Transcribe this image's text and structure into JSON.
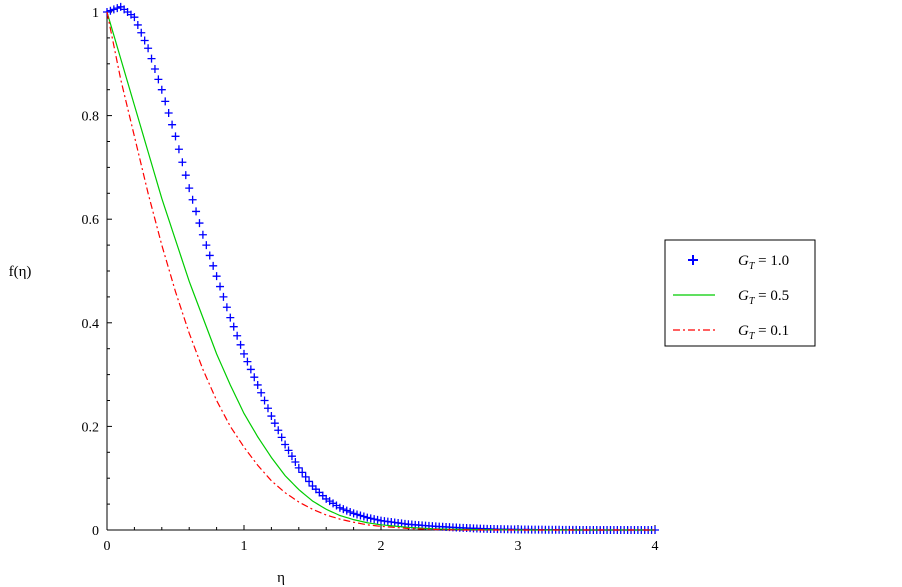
{
  "chart_data": {
    "type": "line",
    "title": "",
    "xlabel": "η",
    "ylabel": "f(η)",
    "xlim": [
      0,
      4
    ],
    "ylim": [
      0,
      1
    ],
    "x_ticks": [
      "0",
      "1",
      "2",
      "3",
      "4"
    ],
    "y_ticks": [
      "0",
      "0.2",
      "0.4",
      "0.6",
      "0.8",
      "1"
    ],
    "grid": false,
    "legend_position": "right",
    "series": [
      {
        "name": "G_T = 1.0",
        "legend_label": {
          "g": "G",
          "sub": "T",
          "rest": " = 1.0"
        },
        "color": "#0000ff",
        "marker": "plus",
        "x": [
          0,
          0.1,
          0.2,
          0.3,
          0.4,
          0.5,
          0.6,
          0.7,
          0.8,
          0.9,
          1.0,
          1.1,
          1.2,
          1.3,
          1.4,
          1.5,
          1.6,
          1.7,
          1.8,
          1.9,
          2.0,
          2.2,
          2.4,
          2.6,
          2.8,
          3.0,
          3.5,
          4.0
        ],
        "y": [
          1.0,
          1.01,
          0.99,
          0.93,
          0.85,
          0.76,
          0.66,
          0.57,
          0.49,
          0.41,
          0.34,
          0.28,
          0.22,
          0.165,
          0.12,
          0.085,
          0.06,
          0.043,
          0.032,
          0.024,
          0.018,
          0.011,
          0.007,
          0.004,
          0.002,
          0.001,
          0.0,
          0.0
        ]
      },
      {
        "name": "G_T = 0.5",
        "legend_label": {
          "g": "G",
          "sub": "T",
          "rest": " = 0.5"
        },
        "color": "#00cc00",
        "marker": "none",
        "dash": "solid",
        "x": [
          0,
          0.1,
          0.2,
          0.3,
          0.4,
          0.5,
          0.6,
          0.7,
          0.8,
          0.9,
          1.0,
          1.1,
          1.2,
          1.3,
          1.4,
          1.5,
          1.6,
          1.7,
          1.8,
          1.9,
          2.0,
          2.2,
          2.4,
          2.6,
          3.0,
          4.0
        ],
        "y": [
          1.0,
          0.91,
          0.82,
          0.73,
          0.64,
          0.56,
          0.48,
          0.41,
          0.34,
          0.28,
          0.225,
          0.18,
          0.14,
          0.105,
          0.078,
          0.056,
          0.04,
          0.028,
          0.02,
          0.014,
          0.01,
          0.005,
          0.002,
          0.001,
          0.0,
          0.0
        ]
      },
      {
        "name": "G_T = 0.1",
        "legend_label": {
          "g": "G",
          "sub": "T",
          "rest": " = 0.1"
        },
        "color": "#ff0000",
        "marker": "none",
        "dash": "dashdot",
        "x": [
          0,
          0.1,
          0.2,
          0.3,
          0.4,
          0.5,
          0.6,
          0.7,
          0.8,
          0.9,
          1.0,
          1.1,
          1.2,
          1.3,
          1.4,
          1.5,
          1.6,
          1.7,
          1.8,
          1.9,
          2.0,
          2.2,
          2.4,
          2.6,
          3.0,
          4.0
        ],
        "y": [
          1.0,
          0.87,
          0.76,
          0.65,
          0.55,
          0.46,
          0.38,
          0.31,
          0.25,
          0.2,
          0.16,
          0.125,
          0.095,
          0.072,
          0.054,
          0.04,
          0.029,
          0.021,
          0.015,
          0.01,
          0.007,
          0.003,
          0.001,
          0.0,
          0.0,
          0.0
        ]
      }
    ]
  }
}
